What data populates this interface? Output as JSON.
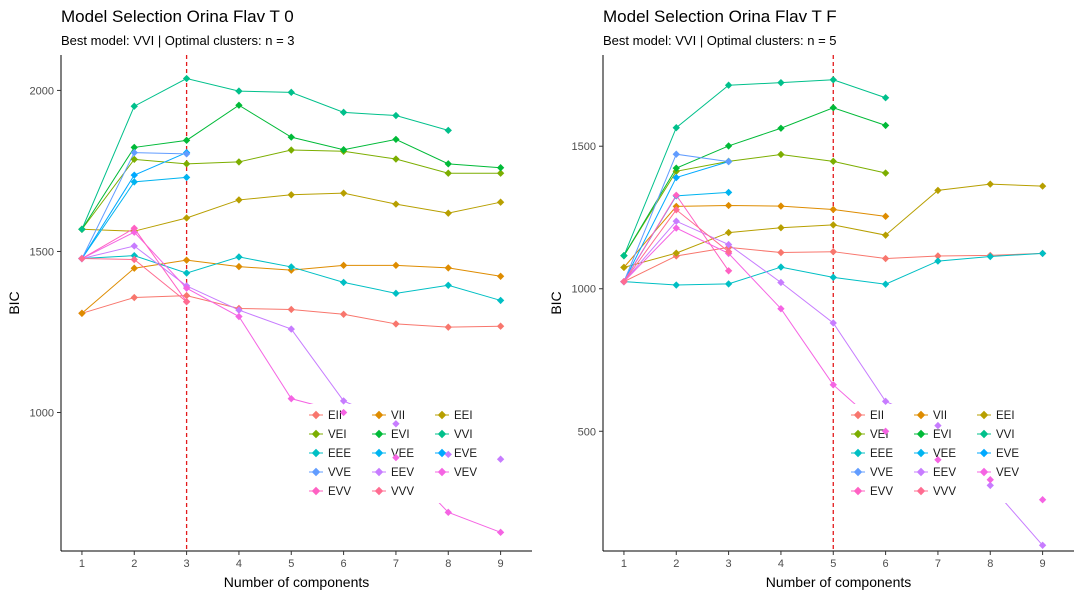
{
  "chart_data": [
    {
      "type": "line",
      "title": "Model Selection Orina Flav T 0",
      "subtitle": "Best model: VVI | Optimal clusters: n = 3",
      "xlabel": "Number of components",
      "ylabel": "BIC",
      "xlim": [
        0.6,
        9.6
      ],
      "ylim": [
        570,
        2110
      ],
      "yticks": [
        1000,
        1500,
        2000
      ],
      "xticks": [
        1,
        2,
        3,
        4,
        5,
        6,
        7,
        8,
        9
      ],
      "vline": 3,
      "grid": false,
      "legend_position": "bottom-right",
      "series": [
        {
          "name": "EII",
          "color": "#F8766D",
          "x": [
            1,
            2,
            3,
            4,
            5,
            6,
            7,
            8,
            9
          ],
          "y": [
            1308,
            1357,
            1363,
            1323,
            1320,
            1305,
            1275,
            1265,
            1268
          ]
        },
        {
          "name": "VII",
          "color": "#DE8C00",
          "x": [
            1,
            2,
            3,
            4,
            5,
            6,
            7,
            8,
            9
          ],
          "y": [
            1308,
            1448,
            1473,
            1453,
            1442,
            1457,
            1457,
            1449,
            1423
          ]
        },
        {
          "name": "EEI",
          "color": "#B79F00",
          "x": [
            1,
            2,
            3,
            4,
            5,
            6,
            7,
            8,
            9
          ],
          "y": [
            1569,
            1563,
            1604,
            1660,
            1676,
            1681,
            1647,
            1619,
            1653
          ]
        },
        {
          "name": "VEI",
          "color": "#7CAE00",
          "x": [
            1,
            2,
            3,
            4,
            5,
            6,
            7,
            8,
            9
          ],
          "y": [
            1569,
            1786,
            1772,
            1778,
            1815,
            1811,
            1787,
            1743,
            1743
          ]
        },
        {
          "name": "EVI",
          "color": "#00BA38",
          "x": [
            1,
            2,
            3,
            4,
            5,
            6,
            7,
            8,
            9
          ],
          "y": [
            1569,
            1823,
            1845,
            1954,
            1855,
            1816,
            1848,
            1772,
            1760
          ]
        },
        {
          "name": "VVI",
          "color": "#00C08B",
          "x": [
            1,
            2,
            3,
            4,
            5,
            6,
            7,
            8
          ],
          "y": [
            1569,
            1951,
            2037,
            1998,
            1994,
            1932,
            1922,
            1876
          ]
        },
        {
          "name": "EEE",
          "color": "#00BFC4",
          "x": [
            1,
            2,
            3,
            4,
            5,
            6,
            7,
            8,
            9
          ],
          "y": [
            1478,
            1487,
            1433,
            1483,
            1452,
            1404,
            1370,
            1395,
            1348
          ]
        },
        {
          "name": "VEE",
          "color": "#00B4F0",
          "x": [
            1,
            2,
            3
          ],
          "y": [
            1478,
            1716,
            1730
          ]
        },
        {
          "name": "EVE",
          "color": "#00A9FF",
          "x": [
            1,
            2,
            3
          ],
          "y": [
            1478,
            1737,
            1807
          ]
        },
        {
          "name": "VVE",
          "color": "#619CFF",
          "x": [
            1,
            2,
            3
          ],
          "y": [
            1478,
            1807,
            1803
          ]
        },
        {
          "name": "EEV",
          "color": "#C77CFF",
          "x": [
            1,
            2,
            3,
            4,
            5,
            6,
            7,
            8,
            9
          ],
          "y": [
            1478,
            1517,
            1393,
            1318,
            1259,
            1036,
            965,
            870,
            855
          ]
        },
        {
          "name": "VEV",
          "color": "#F564E3",
          "x": [
            1,
            2,
            3,
            4,
            5,
            6,
            7,
            8,
            9
          ],
          "y": [
            1478,
            1560,
            1386,
            1298,
            1043,
            1000,
            860,
            690,
            628
          ]
        },
        {
          "name": "EVV",
          "color": "#FF61C3",
          "x": [
            1,
            2,
            3
          ],
          "y": [
            1478,
            1572,
            1344
          ]
        },
        {
          "name": "VVV",
          "color": "#FF6C91",
          "x": [
            1,
            2,
            3
          ],
          "y": [
            1478,
            1475,
            1344
          ]
        }
      ]
    },
    {
      "type": "line",
      "title": "Model Selection Orina Flav T F",
      "subtitle": "Best model: VVI | Optimal clusters: n = 5",
      "xlabel": "Number of components",
      "ylabel": "BIC",
      "xlim": [
        0.6,
        9.6
      ],
      "ylim": [
        80,
        1820
      ],
      "yticks": [
        500,
        1000,
        1500
      ],
      "xticks": [
        1,
        2,
        3,
        4,
        5,
        6,
        7,
        8,
        9
      ],
      "vline": 5,
      "grid": false,
      "legend_position": "bottom-right",
      "series": [
        {
          "name": "EII",
          "color": "#F8766D",
          "x": [
            1,
            2,
            3,
            4,
            5,
            6,
            7,
            8,
            9
          ],
          "y": [
            1025,
            1115,
            1145,
            1127,
            1130,
            1106,
            1115,
            1117,
            1124
          ]
        },
        {
          "name": "VII",
          "color": "#DE8C00",
          "x": [
            1,
            2,
            3,
            4,
            5,
            6
          ],
          "y": [
            1075,
            1289,
            1292,
            1290,
            1278,
            1254
          ]
        },
        {
          "name": "EEI",
          "color": "#B79F00",
          "x": [
            1,
            2,
            3,
            4,
            5,
            6,
            7,
            8,
            9
          ],
          "y": [
            1075,
            1125,
            1197,
            1214,
            1224,
            1188,
            1345,
            1367,
            1360
          ]
        },
        {
          "name": "VEI",
          "color": "#7CAE00",
          "x": [
            1,
            2,
            3,
            4,
            5,
            6
          ],
          "y": [
            1116,
            1412,
            1447,
            1471,
            1447,
            1406
          ]
        },
        {
          "name": "EVI",
          "color": "#00BA38",
          "x": [
            1,
            2,
            3,
            4,
            5,
            6
          ],
          "y": [
            1116,
            1423,
            1501,
            1563,
            1635,
            1573
          ]
        },
        {
          "name": "VVI",
          "color": "#00C08B",
          "x": [
            1,
            2,
            3,
            4,
            5,
            6
          ],
          "y": [
            1116,
            1565,
            1714,
            1723,
            1733,
            1670
          ]
        },
        {
          "name": "EEE",
          "color": "#00BFC4",
          "x": [
            1,
            2,
            3,
            4,
            5,
            6,
            7,
            8,
            9
          ],
          "y": [
            1025,
            1013,
            1017,
            1076,
            1040,
            1016,
            1097,
            1113,
            1124
          ]
        },
        {
          "name": "VEE",
          "color": "#00B4F0",
          "x": [
            1,
            2,
            3
          ],
          "y": [
            1025,
            1326,
            1338
          ]
        },
        {
          "name": "EVE",
          "color": "#00A9FF",
          "x": [
            1,
            2,
            3
          ],
          "y": [
            1025,
            1390,
            1446
          ]
        },
        {
          "name": "VVE",
          "color": "#619CFF",
          "x": [
            1,
            2,
            3
          ],
          "y": [
            1025,
            1472,
            1446
          ]
        },
        {
          "name": "EEV",
          "color": "#C77CFF",
          "x": [
            1,
            2,
            3,
            4,
            5,
            6,
            7,
            8,
            9
          ],
          "y": [
            1025,
            1237,
            1155,
            1022,
            880,
            605,
            520,
            310,
            100
          ]
        },
        {
          "name": "VEV",
          "color": "#F564E3",
          "x": [
            1,
            2,
            3,
            4,
            5,
            6,
            7,
            8,
            9
          ],
          "y": [
            1025,
            1213,
            1124,
            930,
            663,
            500,
            400,
            330,
            260
          ]
        },
        {
          "name": "EVV",
          "color": "#FF61C3",
          "x": [
            1,
            2,
            3
          ],
          "y": [
            1025,
            1328,
            1063
          ]
        },
        {
          "name": "VVV",
          "color": "#FF6C91",
          "x": [
            1,
            2,
            3
          ],
          "y": [
            1025,
            1277,
            1130
          ]
        }
      ]
    }
  ]
}
